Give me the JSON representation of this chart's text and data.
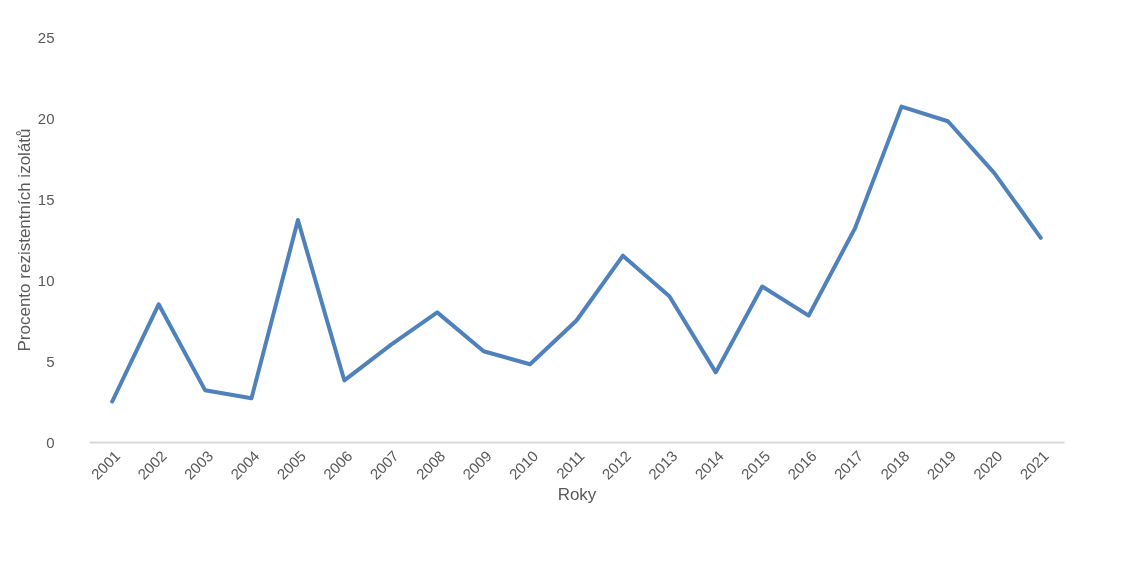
{
  "chart_data": {
    "type": "line",
    "xlabel": "Roky",
    "ylabel": "Procento rezistentních izolátů",
    "categories": [
      "2001",
      "2002",
      "2003",
      "2004",
      "2005",
      "2006",
      "2007",
      "2008",
      "2009",
      "2010",
      "2011",
      "2012",
      "2013",
      "2014",
      "2015",
      "2016",
      "2017",
      "2018",
      "2019",
      "2020",
      "2021"
    ],
    "series": [
      {
        "color": "#4f81bd",
        "values": [
          2.5,
          8.5,
          3.2,
          2.7,
          13.7,
          3.8,
          6.0,
          8.0,
          5.6,
          4.8,
          7.5,
          11.5,
          9.0,
          4.3,
          9.6,
          7.8,
          13.2,
          20.7,
          19.8,
          16.6,
          12.6
        ]
      }
    ],
    "ylim": [
      0,
      25
    ],
    "yticks": [
      0,
      5,
      10,
      15,
      20,
      25
    ],
    "grid": false,
    "marker": "none",
    "line_style": "solid"
  }
}
